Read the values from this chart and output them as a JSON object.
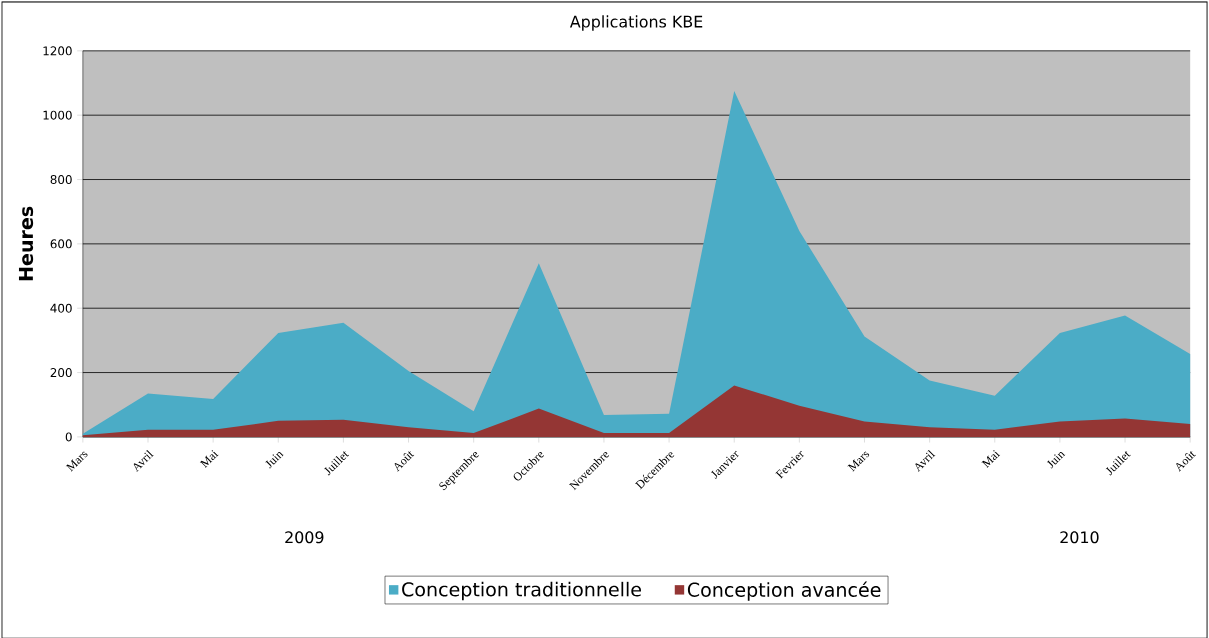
{
  "chart_data": {
    "type": "area",
    "title": "Applications KBE",
    "ylabel": "Heures",
    "categories": [
      "Mars",
      "Avril",
      "Mai",
      "Juin",
      "Juillet",
      "Août",
      "Septembre",
      "Octobre",
      "Novembre",
      "Décembre",
      "Janvier",
      "Fevrier",
      "Mars",
      "Avril",
      "Mai",
      "Juin",
      "Juillet",
      "Août"
    ],
    "series": [
      {
        "name": "Conception traditionnelle",
        "color": "#4bacc6",
        "values": [
          10,
          135,
          118,
          323,
          355,
          205,
          80,
          540,
          68,
          72,
          1075,
          640,
          312,
          175,
          128,
          323,
          377,
          258
        ]
      },
      {
        "name": "Conception avancée",
        "color": "#943634",
        "values": [
          5,
          22,
          22,
          50,
          53,
          30,
          12,
          88,
          12,
          12,
          160,
          97,
          48,
          30,
          22,
          48,
          57,
          40
        ]
      }
    ],
    "ylim": [
      0,
      1200
    ],
    "yticks": [
      0,
      200,
      400,
      600,
      800,
      1000,
      1200
    ],
    "grid": "y",
    "legend": "bottom",
    "annotations": [
      "2009",
      "2010"
    ]
  }
}
